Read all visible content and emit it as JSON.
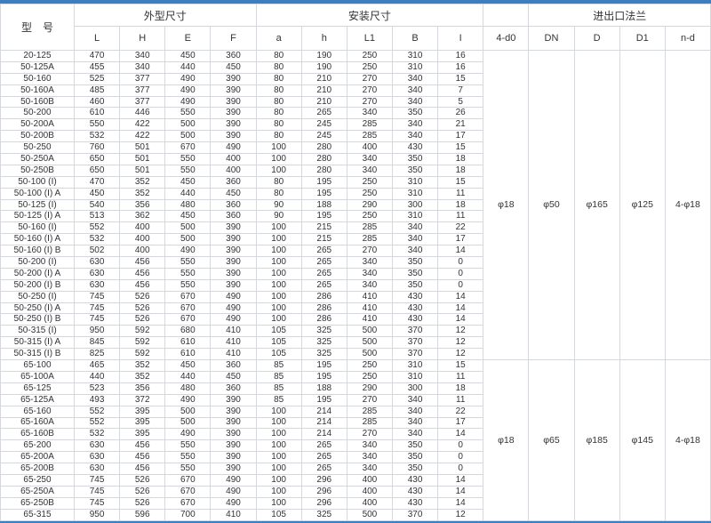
{
  "colors": {
    "accent_bar": "#3d7ebf",
    "grid_border": "#d4d7db",
    "text": "#333333"
  },
  "chart_data": {
    "type": "table",
    "header": {
      "model_label": "型　号",
      "group_labels": {
        "outline": "外型尺寸",
        "install": "安装尺寸",
        "spacer": "",
        "flange": "进出口法兰"
      },
      "columns": [
        "L",
        "H",
        "E",
        "F",
        "a",
        "h",
        "L1",
        "B",
        "I",
        "4-d0",
        "DN",
        "D",
        "D1",
        "n-d"
      ]
    },
    "sections": [
      {
        "flange": [
          "φ18",
          "φ50",
          "φ165",
          "φ125",
          "4-φ18"
        ],
        "rows": [
          {
            "model": "20-125",
            "dims": [
              470,
              340,
              450,
              360,
              80,
              190,
              250,
              310,
              16
            ]
          },
          {
            "model": "50-125A",
            "dims": [
              455,
              340,
              440,
              450,
              80,
              190,
              250,
              310,
              16
            ]
          },
          {
            "model": "50-160",
            "dims": [
              525,
              377,
              490,
              390,
              80,
              210,
              270,
              340,
              15
            ]
          },
          {
            "model": "50-160A",
            "dims": [
              485,
              377,
              490,
              390,
              80,
              210,
              270,
              340,
              7
            ]
          },
          {
            "model": "50-160B",
            "dims": [
              460,
              377,
              490,
              390,
              80,
              210,
              270,
              340,
              5
            ]
          },
          {
            "model": "50-200",
            "dims": [
              610,
              446,
              550,
              390,
              80,
              265,
              340,
              350,
              26
            ]
          },
          {
            "model": "50-200A",
            "dims": [
              550,
              422,
              500,
              390,
              80,
              245,
              285,
              340,
              21
            ]
          },
          {
            "model": "50-200B",
            "dims": [
              532,
              422,
              500,
              390,
              80,
              245,
              285,
              340,
              17
            ]
          },
          {
            "model": "50-250",
            "dims": [
              760,
              501,
              670,
              490,
              100,
              280,
              400,
              430,
              15
            ]
          },
          {
            "model": "50-250A",
            "dims": [
              650,
              501,
              550,
              400,
              100,
              280,
              340,
              350,
              18
            ]
          },
          {
            "model": "50-250B",
            "dims": [
              650,
              501,
              550,
              400,
              100,
              280,
              340,
              350,
              18
            ]
          },
          {
            "model": "50-100 (Ⅰ)",
            "dims": [
              470,
              352,
              450,
              360,
              80,
              195,
              250,
              310,
              15
            ]
          },
          {
            "model": "50-100 (Ⅰ) A",
            "dims": [
              450,
              352,
              440,
              450,
              80,
              195,
              250,
              310,
              11
            ]
          },
          {
            "model": "50-125 (Ⅰ)",
            "dims": [
              540,
              356,
              480,
              360,
              90,
              188,
              290,
              300,
              18
            ]
          },
          {
            "model": "50-125 (Ⅰ) A",
            "dims": [
              513,
              362,
              450,
              360,
              90,
              195,
              250,
              310,
              11
            ]
          },
          {
            "model": "50-160 (Ⅰ)",
            "dims": [
              552,
              400,
              500,
              390,
              100,
              215,
              285,
              340,
              22
            ]
          },
          {
            "model": "50-160 (Ⅰ) A",
            "dims": [
              532,
              400,
              500,
              390,
              100,
              215,
              285,
              340,
              17
            ]
          },
          {
            "model": "50-160 (Ⅰ) B",
            "dims": [
              502,
              400,
              490,
              390,
              100,
              265,
              270,
              340,
              14
            ]
          },
          {
            "model": "50-200 (Ⅰ)",
            "dims": [
              630,
              456,
              550,
              390,
              100,
              265,
              340,
              350,
              0
            ]
          },
          {
            "model": "50-200 (Ⅰ) A",
            "dims": [
              630,
              456,
              550,
              390,
              100,
              265,
              340,
              350,
              0
            ]
          },
          {
            "model": "50-200 (Ⅰ) B",
            "dims": [
              630,
              456,
              550,
              390,
              100,
              265,
              340,
              350,
              0
            ]
          },
          {
            "model": "50-250 (Ⅰ)",
            "dims": [
              745,
              526,
              670,
              490,
              100,
              286,
              410,
              430,
              14
            ]
          },
          {
            "model": "50-250 (Ⅰ) A",
            "dims": [
              745,
              526,
              670,
              490,
              100,
              286,
              410,
              430,
              14
            ]
          },
          {
            "model": "50-250 (Ⅰ) B",
            "dims": [
              745,
              526,
              670,
              490,
              100,
              286,
              410,
              430,
              14
            ]
          },
          {
            "model": "50-315 (Ⅰ)",
            "dims": [
              950,
              592,
              680,
              410,
              105,
              325,
              500,
              370,
              12
            ]
          },
          {
            "model": "50-315 (Ⅰ) A",
            "dims": [
              845,
              592,
              610,
              410,
              105,
              325,
              500,
              370,
              12
            ]
          },
          {
            "model": "50-315 (Ⅰ) B",
            "dims": [
              825,
              592,
              610,
              410,
              105,
              325,
              500,
              370,
              12
            ]
          }
        ]
      },
      {
        "flange": [
          "φ18",
          "φ65",
          "φ185",
          "φ145",
          "4-φ18"
        ],
        "rows": [
          {
            "model": "65-100",
            "dims": [
              465,
              352,
              450,
              360,
              85,
              195,
              250,
              310,
              15
            ]
          },
          {
            "model": "65-100A",
            "dims": [
              440,
              352,
              440,
              450,
              85,
              195,
              250,
              310,
              11
            ]
          },
          {
            "model": "65-125",
            "dims": [
              523,
              356,
              480,
              360,
              85,
              188,
              290,
              300,
              18
            ]
          },
          {
            "model": "65-125A",
            "dims": [
              493,
              372,
              490,
              390,
              85,
              195,
              270,
              340,
              11
            ]
          },
          {
            "model": "65-160",
            "dims": [
              552,
              395,
              500,
              390,
              100,
              214,
              285,
              340,
              22
            ]
          },
          {
            "model": "65-160A",
            "dims": [
              552,
              395,
              500,
              390,
              100,
              214,
              285,
              340,
              17
            ]
          },
          {
            "model": "65-160B",
            "dims": [
              532,
              395,
              490,
              390,
              100,
              214,
              270,
              340,
              14
            ]
          },
          {
            "model": "65-200",
            "dims": [
              630,
              456,
              550,
              390,
              100,
              265,
              340,
              350,
              0
            ]
          },
          {
            "model": "65-200A",
            "dims": [
              630,
              456,
              550,
              390,
              100,
              265,
              340,
              350,
              0
            ]
          },
          {
            "model": "65-200B",
            "dims": [
              630,
              456,
              550,
              390,
              100,
              265,
              340,
              350,
              0
            ]
          },
          {
            "model": "65-250",
            "dims": [
              745,
              526,
              670,
              490,
              100,
              296,
              400,
              430,
              14
            ]
          },
          {
            "model": "65-250A",
            "dims": [
              745,
              526,
              670,
              490,
              100,
              296,
              400,
              430,
              14
            ]
          },
          {
            "model": "65-250B",
            "dims": [
              745,
              526,
              670,
              490,
              100,
              296,
              400,
              430,
              14
            ]
          },
          {
            "model": "65-315",
            "dims": [
              950,
              596,
              700,
              410,
              105,
              325,
              500,
              370,
              12
            ]
          }
        ]
      }
    ]
  }
}
